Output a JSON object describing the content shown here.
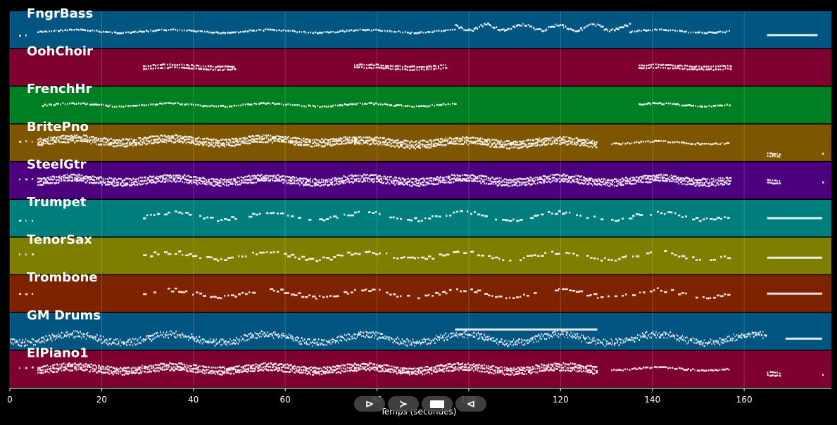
{
  "chart_data": {
    "type": "piano-roll",
    "xlabel": "Temps (secondes)",
    "xlim": [
      0,
      179
    ],
    "xticks": [
      0,
      20,
      40,
      60,
      80,
      100,
      120,
      140,
      160
    ],
    "grid": true,
    "tracks": [
      {
        "name": "FngrBass",
        "color": "#005581",
        "segments": [
          {
            "start": 2,
            "end": 4,
            "density": "sparse",
            "pitch": 0.35
          },
          {
            "start": 6,
            "end": 97,
            "density": "normal",
            "pitch": 0.45
          },
          {
            "start": 97,
            "end": 135,
            "density": "wavy",
            "pitch": 0.55
          },
          {
            "start": 135,
            "end": 157,
            "density": "normal",
            "pitch": 0.45
          },
          {
            "start": 165,
            "end": 176,
            "density": "sustain",
            "pitch": 0.35
          }
        ]
      },
      {
        "name": "OohChoir",
        "color": "#7e0030",
        "segments": [
          {
            "start": 29,
            "end": 49,
            "density": "chord",
            "pitch": 0.5
          },
          {
            "start": 75,
            "end": 95,
            "density": "chord",
            "pitch": 0.5
          },
          {
            "start": 137,
            "end": 157,
            "density": "chord",
            "pitch": 0.5
          }
        ]
      },
      {
        "name": "FrenchHr",
        "color": "#007e23",
        "segments": [
          {
            "start": 7,
            "end": 97,
            "density": "normal",
            "pitch": 0.5
          },
          {
            "start": 137,
            "end": 157,
            "density": "normal",
            "pitch": 0.5
          }
        ]
      },
      {
        "name": "BritePno",
        "color": "#7e5600",
        "segments": [
          {
            "start": 2,
            "end": 5,
            "density": "sparse",
            "pitch": 0.55
          },
          {
            "start": 6,
            "end": 75,
            "density": "dense",
            "pitch": 0.55
          },
          {
            "start": 75,
            "end": 128,
            "density": "dense",
            "pitch": 0.5
          },
          {
            "start": 131,
            "end": 157,
            "density": "normal",
            "pitch": 0.5
          },
          {
            "start": 165,
            "end": 168,
            "density": "chord",
            "pitch": 0.15
          },
          {
            "start": 177,
            "end": 178,
            "density": "sparse",
            "pitch": 0.2
          }
        ]
      },
      {
        "name": "SteelGtr",
        "color": "#4d007e",
        "segments": [
          {
            "start": 2,
            "end": 5,
            "density": "sparse",
            "pitch": 0.55
          },
          {
            "start": 6,
            "end": 157,
            "density": "dense",
            "pitch": 0.5
          },
          {
            "start": 165,
            "end": 168,
            "density": "chord",
            "pitch": 0.45
          },
          {
            "start": 177,
            "end": 178,
            "density": "sparse",
            "pitch": 0.45
          }
        ]
      },
      {
        "name": "Trumpet",
        "color": "#007e7e",
        "segments": [
          {
            "start": 2,
            "end": 5,
            "density": "sparse",
            "pitch": 0.45
          },
          {
            "start": 29,
            "end": 157,
            "density": "melody",
            "pitch": 0.55
          },
          {
            "start": 165,
            "end": 177,
            "density": "sustain",
            "pitch": 0.5
          }
        ]
      },
      {
        "name": "TenorSax",
        "color": "#7e7e00",
        "segments": [
          {
            "start": 2,
            "end": 5,
            "density": "sparse",
            "pitch": 0.55
          },
          {
            "start": 29,
            "end": 157,
            "density": "melody",
            "pitch": 0.5
          },
          {
            "start": 165,
            "end": 177,
            "density": "sustain",
            "pitch": 0.45
          }
        ]
      },
      {
        "name": "Trombone",
        "color": "#7e2300",
        "segments": [
          {
            "start": 2,
            "end": 5,
            "density": "sparse",
            "pitch": 0.5
          },
          {
            "start": 29,
            "end": 157,
            "density": "melody",
            "pitch": 0.5
          },
          {
            "start": 165,
            "end": 177,
            "density": "sustain",
            "pitch": 0.5
          }
        ]
      },
      {
        "name": "GM Drums",
        "color": "#005581",
        "segments": [
          {
            "start": 0,
            "end": 165,
            "density": "drums",
            "pitch": 0.3
          },
          {
            "start": 97,
            "end": 128,
            "density": "sustain",
            "pitch": 0.55
          },
          {
            "start": 169,
            "end": 177,
            "density": "sustain",
            "pitch": 0.3
          }
        ]
      },
      {
        "name": "ElPiano1",
        "color": "#7e0030",
        "segments": [
          {
            "start": 2,
            "end": 5,
            "density": "sparse",
            "pitch": 0.55
          },
          {
            "start": 6,
            "end": 75,
            "density": "dense",
            "pitch": 0.5
          },
          {
            "start": 75,
            "end": 128,
            "density": "dense",
            "pitch": 0.5
          },
          {
            "start": 131,
            "end": 157,
            "density": "normal",
            "pitch": 0.5
          },
          {
            "start": 165,
            "end": 168,
            "density": "chord",
            "pitch": 0.35
          },
          {
            "start": 177,
            "end": 178,
            "density": "sparse",
            "pitch": 0.35
          }
        ]
      }
    ]
  },
  "controls": {
    "rewind": "⊳",
    "play": "≻",
    "stop_icon": "stop-icon",
    "back": "⊲"
  }
}
